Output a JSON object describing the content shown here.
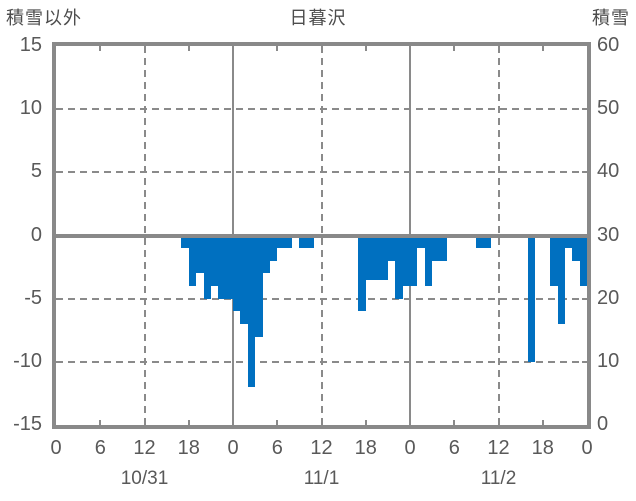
{
  "header": {
    "left_axis_title": "積雪以外",
    "title": "日暮沢",
    "right_axis_title": "積雪"
  },
  "chart_data": {
    "type": "bar",
    "title": "日暮沢",
    "bar_color": "#0070C0",
    "grid_color": "#898989",
    "text_color": "#595959",
    "left_axis": {
      "label": "積雪以外",
      "ticks": [
        15,
        10,
        5,
        0,
        -5,
        -10,
        -15
      ],
      "range": [
        -15,
        15
      ]
    },
    "right_axis": {
      "label": "積雪",
      "ticks": [
        60,
        50,
        40,
        30,
        20,
        10,
        0
      ],
      "range": [
        0,
        60
      ]
    },
    "x_axis": {
      "range_hours": [
        0,
        72
      ],
      "hour_tick_step": 6,
      "hour_tick_labels": [
        "0",
        "6",
        "12",
        "18",
        "0",
        "6",
        "12",
        "18",
        "0",
        "6",
        "12",
        "18",
        "0"
      ],
      "dates": [
        {
          "label": "10/31",
          "center_hour": 12
        },
        {
          "label": "11/1",
          "center_hour": 36
        },
        {
          "label": "11/2",
          "center_hour": 60
        }
      ],
      "solid_gridline_hours": [
        24,
        48
      ],
      "dashed_gridline_hours": [
        12,
        36,
        60
      ]
    },
    "dashed_gridline_values": [
      10,
      5,
      -5,
      -10
    ],
    "series": [
      {
        "time": "10/31 17:00",
        "t": 17,
        "value": -1
      },
      {
        "time": "10/31 18:00",
        "t": 18,
        "value": -4
      },
      {
        "time": "10/31 19:00",
        "t": 19,
        "value": -3
      },
      {
        "time": "10/31 20:00",
        "t": 20,
        "value": -5
      },
      {
        "time": "10/31 21:00",
        "t": 21,
        "value": -4
      },
      {
        "time": "10/31 22:00",
        "t": 22,
        "value": -5
      },
      {
        "time": "10/31 23:00",
        "t": 23,
        "value": -5
      },
      {
        "time": "11/1 00:00",
        "t": 24,
        "value": -6
      },
      {
        "time": "11/1 01:00",
        "t": 25,
        "value": -7
      },
      {
        "time": "11/1 02:00",
        "t": 26,
        "value": -12
      },
      {
        "time": "11/1 03:00",
        "t": 27,
        "value": -8
      },
      {
        "time": "11/1 04:00",
        "t": 28,
        "value": -3
      },
      {
        "time": "11/1 05:00",
        "t": 29,
        "value": -2
      },
      {
        "time": "11/1 06:00",
        "t": 30,
        "value": -1
      },
      {
        "time": "11/1 07:00",
        "t": 31,
        "value": -1
      },
      {
        "time": "11/1 09:00",
        "t": 33,
        "value": -1
      },
      {
        "time": "11/1 10:00",
        "t": 34,
        "value": -1
      },
      {
        "time": "11/1 17:00",
        "t": 41,
        "value": -6
      },
      {
        "time": "11/1 18:00",
        "t": 42,
        "value": -3.5
      },
      {
        "time": "11/1 19:00",
        "t": 43,
        "value": -3.5
      },
      {
        "time": "11/1 20:00",
        "t": 44,
        "value": -3.5
      },
      {
        "time": "11/1 21:00",
        "t": 45,
        "value": -2
      },
      {
        "time": "11/1 22:00",
        "t": 46,
        "value": -5
      },
      {
        "time": "11/1 23:00",
        "t": 47,
        "value": -4
      },
      {
        "time": "11/2 00:00",
        "t": 48,
        "value": -4
      },
      {
        "time": "11/2 01:00",
        "t": 49,
        "value": -1
      },
      {
        "time": "11/2 02:00",
        "t": 50,
        "value": -4
      },
      {
        "time": "11/2 03:00",
        "t": 51,
        "value": -2
      },
      {
        "time": "11/2 04:00",
        "t": 52,
        "value": -2
      },
      {
        "time": "11/2 09:00",
        "t": 57,
        "value": -1
      },
      {
        "time": "11/2 10:00",
        "t": 58,
        "value": -1
      },
      {
        "time": "11/2 16:00",
        "t": 64,
        "value": -10
      },
      {
        "time": "11/2 19:00",
        "t": 67,
        "value": -4
      },
      {
        "time": "11/2 20:00",
        "t": 68,
        "value": -7
      },
      {
        "time": "11/2 21:00",
        "t": 69,
        "value": -1
      },
      {
        "time": "11/2 22:00",
        "t": 70,
        "value": -2
      },
      {
        "time": "11/2 23:00",
        "t": 71,
        "value": -4
      }
    ]
  }
}
